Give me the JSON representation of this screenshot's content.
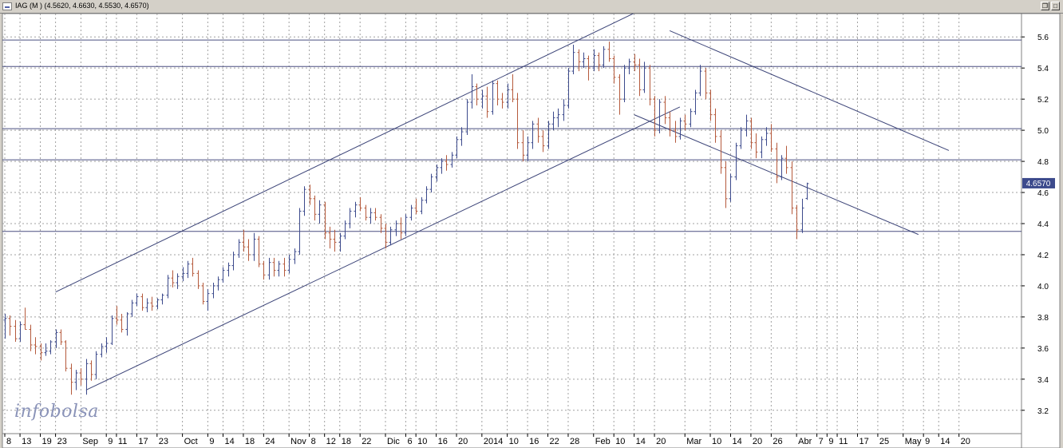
{
  "window": {
    "title": "IAG (M ) (4.5620, 4.6630, 4.5530, 4.6570)",
    "restore_glyph": "❐",
    "maximize_glyph": "□"
  },
  "chart_data": {
    "type": "bar",
    "subtype": "ohlc",
    "title": "IAG (M ) (4.5620, 4.6630, 4.5530, 4.6570)",
    "xlabel": "",
    "ylabel": "",
    "ylim": [
      3.05,
      5.75
    ],
    "y_ticks": [
      "3.2",
      "3.4",
      "3.6",
      "3.8",
      "4.0",
      "4.2",
      "4.4",
      "4.6",
      "4.8",
      "5.0",
      "5.2",
      "5.4",
      "5.6"
    ],
    "last_price_label": "4.6570",
    "last_price": 4.657,
    "x_tick_labels": [
      {
        "label": "8",
        "index": 0
      },
      {
        "label": "13",
        "index": 3
      },
      {
        "label": "19",
        "index": 7
      },
      {
        "label": "23",
        "index": 10
      },
      {
        "label": "Sep",
        "index": 15
      },
      {
        "label": "9",
        "index": 20
      },
      {
        "label": "11",
        "index": 22
      },
      {
        "label": "17",
        "index": 26
      },
      {
        "label": "23",
        "index": 30
      },
      {
        "label": "Oct",
        "index": 35
      },
      {
        "label": "9",
        "index": 40
      },
      {
        "label": "14",
        "index": 43
      },
      {
        "label": "18",
        "index": 47
      },
      {
        "label": "24",
        "index": 51
      },
      {
        "label": "Nov",
        "index": 56
      },
      {
        "label": "8",
        "index": 60
      },
      {
        "label": "12",
        "index": 63
      },
      {
        "label": "18",
        "index": 66
      },
      {
        "label": "22",
        "index": 70
      },
      {
        "label": "Dic",
        "index": 75
      },
      {
        "label": "6",
        "index": 79
      },
      {
        "label": "10",
        "index": 81
      },
      {
        "label": "16",
        "index": 85
      },
      {
        "label": "20",
        "index": 89
      },
      {
        "label": "2014",
        "index": 94
      },
      {
        "label": "10",
        "index": 99
      },
      {
        "label": "16",
        "index": 103
      },
      {
        "label": "22",
        "index": 107
      },
      {
        "label": "28",
        "index": 111
      },
      {
        "label": "Feb",
        "index": 116
      },
      {
        "label": "10",
        "index": 120
      },
      {
        "label": "14",
        "index": 124
      },
      {
        "label": "20",
        "index": 128
      },
      {
        "label": "Mar",
        "index": 134
      },
      {
        "label": "10",
        "index": 139
      },
      {
        "label": "14",
        "index": 143
      },
      {
        "label": "20",
        "index": 147
      },
      {
        "label": "26",
        "index": 151
      },
      {
        "label": "Abr",
        "index": 156
      },
      {
        "label": "7",
        "index": 160
      },
      {
        "label": "9",
        "index": 162
      },
      {
        "label": "11",
        "index": 164
      },
      {
        "label": "17",
        "index": 168
      },
      {
        "label": "25",
        "index": 172
      },
      {
        "label": "May",
        "index": 177
      },
      {
        "label": "9",
        "index": 181
      },
      {
        "label": "14",
        "index": 184
      },
      {
        "label": "20",
        "index": 188
      }
    ],
    "horizontal_levels": [
      5.58,
      5.41,
      5.01,
      4.81,
      4.35
    ],
    "trendlines": [
      {
        "from": {
          "index": 10,
          "value": 3.96
        },
        "to": {
          "index": 127,
          "value": 5.8
        }
      },
      {
        "from": {
          "index": 16,
          "value": 3.33
        },
        "to": {
          "index": 133,
          "value": 5.15
        }
      },
      {
        "from": {
          "index": 131,
          "value": 5.64
        },
        "to": {
          "index": 186,
          "value": 4.87
        }
      },
      {
        "from": {
          "index": 124,
          "value": 5.1
        },
        "to": {
          "index": 180,
          "value": 4.33
        }
      }
    ],
    "series": [
      {
        "name": "IAG",
        "up_color": "#3c4a8c",
        "down_color": "#b55a3c",
        "bars": [
          [
            3.78,
            3.82,
            3.66,
            3.79
          ],
          [
            3.79,
            3.81,
            3.68,
            3.74
          ],
          [
            3.74,
            3.78,
            3.64,
            3.66
          ],
          [
            3.66,
            3.77,
            3.64,
            3.75
          ],
          [
            3.75,
            3.86,
            3.72,
            3.72
          ],
          [
            3.72,
            3.75,
            3.58,
            3.62
          ],
          [
            3.62,
            3.67,
            3.56,
            3.61
          ],
          [
            3.61,
            3.63,
            3.52,
            3.57
          ],
          [
            3.57,
            3.63,
            3.55,
            3.58
          ],
          [
            3.58,
            3.65,
            3.56,
            3.64
          ],
          [
            3.64,
            3.72,
            3.6,
            3.7
          ],
          [
            3.7,
            3.72,
            3.62,
            3.64
          ],
          [
            3.64,
            3.65,
            3.45,
            3.47
          ],
          [
            3.47,
            3.5,
            3.3,
            3.38
          ],
          [
            3.38,
            3.46,
            3.33,
            3.44
          ],
          [
            3.44,
            3.47,
            3.36,
            3.4
          ],
          [
            3.4,
            3.53,
            3.3,
            3.5
          ],
          [
            3.5,
            3.52,
            3.39,
            3.43
          ],
          [
            3.43,
            3.58,
            3.4,
            3.56
          ],
          [
            3.56,
            3.63,
            3.54,
            3.61
          ],
          [
            3.61,
            3.67,
            3.57,
            3.63
          ],
          [
            3.63,
            3.81,
            3.62,
            3.79
          ],
          [
            3.79,
            3.87,
            3.75,
            3.78
          ],
          [
            3.78,
            3.82,
            3.7,
            3.72
          ],
          [
            3.72,
            3.83,
            3.68,
            3.82
          ],
          [
            3.82,
            3.91,
            3.8,
            3.89
          ],
          [
            3.89,
            3.95,
            3.87,
            3.93
          ],
          [
            3.93,
            3.95,
            3.84,
            3.86
          ],
          [
            3.86,
            3.92,
            3.83,
            3.89
          ],
          [
            3.89,
            3.93,
            3.84,
            3.87
          ],
          [
            3.87,
            3.92,
            3.85,
            3.91
          ],
          [
            3.91,
            3.95,
            3.88,
            3.94
          ],
          [
            3.94,
            4.07,
            3.92,
            4.05
          ],
          [
            4.05,
            4.1,
            3.99,
            4.02
          ],
          [
            4.02,
            4.08,
            3.98,
            4.06
          ],
          [
            4.06,
            4.12,
            4.03,
            4.08
          ],
          [
            4.08,
            4.16,
            4.05,
            4.14
          ],
          [
            4.14,
            4.18,
            4.06,
            4.08
          ],
          [
            4.08,
            4.1,
            3.98,
            4.0
          ],
          [
            4.0,
            4.02,
            3.88,
            3.9
          ],
          [
            3.9,
            3.98,
            3.84,
            3.95
          ],
          [
            3.95,
            4.02,
            3.92,
            4.0
          ],
          [
            4.0,
            4.06,
            3.97,
            4.04
          ],
          [
            4.04,
            4.12,
            4.02,
            4.1
          ],
          [
            4.1,
            4.15,
            4.06,
            4.13
          ],
          [
            4.13,
            4.22,
            4.1,
            4.2
          ],
          [
            4.2,
            4.3,
            4.18,
            4.28
          ],
          [
            4.28,
            4.36,
            4.22,
            4.25
          ],
          [
            4.25,
            4.3,
            4.16,
            4.2
          ],
          [
            4.2,
            4.34,
            4.16,
            4.3
          ],
          [
            4.3,
            4.32,
            4.12,
            4.14
          ],
          [
            4.14,
            4.16,
            4.04,
            4.07
          ],
          [
            4.07,
            4.18,
            4.04,
            4.15
          ],
          [
            4.15,
            4.18,
            4.06,
            4.1
          ],
          [
            4.1,
            4.16,
            4.06,
            4.14
          ],
          [
            4.14,
            4.18,
            4.06,
            4.1
          ],
          [
            4.1,
            4.2,
            4.08,
            4.17
          ],
          [
            4.17,
            4.24,
            4.14,
            4.22
          ],
          [
            4.22,
            4.5,
            4.2,
            4.48
          ],
          [
            4.48,
            4.64,
            4.45,
            4.62
          ],
          [
            4.62,
            4.65,
            4.52,
            4.56
          ],
          [
            4.56,
            4.58,
            4.42,
            4.46
          ],
          [
            4.46,
            4.55,
            4.4,
            4.52
          ],
          [
            4.52,
            4.54,
            4.3,
            4.34
          ],
          [
            4.34,
            4.38,
            4.24,
            4.3
          ],
          [
            4.3,
            4.36,
            4.22,
            4.28
          ],
          [
            4.28,
            4.34,
            4.22,
            4.32
          ],
          [
            4.32,
            4.42,
            4.3,
            4.4
          ],
          [
            4.4,
            4.5,
            4.37,
            4.48
          ],
          [
            4.48,
            4.54,
            4.44,
            4.52
          ],
          [
            4.52,
            4.57,
            4.48,
            4.5
          ],
          [
            4.5,
            4.52,
            4.42,
            4.44
          ],
          [
            4.44,
            4.5,
            4.4,
            4.47
          ],
          [
            4.47,
            4.5,
            4.42,
            4.44
          ],
          [
            4.44,
            4.46,
            4.34,
            4.37
          ],
          [
            4.37,
            4.4,
            4.24,
            4.28
          ],
          [
            4.28,
            4.38,
            4.26,
            4.36
          ],
          [
            4.36,
            4.42,
            4.32,
            4.4
          ],
          [
            4.4,
            4.44,
            4.3,
            4.34
          ],
          [
            4.34,
            4.46,
            4.32,
            4.44
          ],
          [
            4.44,
            4.52,
            4.42,
            4.5
          ],
          [
            4.5,
            4.56,
            4.46,
            4.48
          ],
          [
            4.48,
            4.57,
            4.46,
            4.55
          ],
          [
            4.55,
            4.64,
            4.53,
            4.62
          ],
          [
            4.62,
            4.72,
            4.6,
            4.7
          ],
          [
            4.7,
            4.78,
            4.67,
            4.76
          ],
          [
            4.76,
            4.82,
            4.72,
            4.8
          ],
          [
            4.8,
            4.84,
            4.74,
            4.78
          ],
          [
            4.78,
            4.86,
            4.76,
            4.84
          ],
          [
            4.84,
            4.96,
            4.82,
            4.94
          ],
          [
            4.94,
            5.02,
            4.9,
            4.99
          ],
          [
            4.99,
            5.2,
            4.97,
            5.18
          ],
          [
            5.18,
            5.36,
            5.14,
            5.28
          ],
          [
            5.28,
            5.3,
            5.16,
            5.2
          ],
          [
            5.2,
            5.26,
            5.14,
            5.22
          ],
          [
            5.22,
            5.28,
            5.08,
            5.12
          ],
          [
            5.12,
            5.32,
            5.1,
            5.3
          ],
          [
            5.3,
            5.32,
            5.16,
            5.2
          ],
          [
            5.2,
            5.24,
            5.14,
            5.18
          ],
          [
            5.18,
            5.3,
            5.14,
            5.26
          ],
          [
            5.26,
            5.36,
            5.18,
            5.2
          ],
          [
            5.2,
            5.24,
            4.88,
            4.92
          ],
          [
            4.92,
            5.0,
            4.8,
            4.84
          ],
          [
            4.84,
            4.96,
            4.8,
            4.92
          ],
          [
            4.92,
            5.06,
            4.88,
            5.04
          ],
          [
            5.04,
            5.08,
            4.92,
            4.96
          ],
          [
            4.96,
            5.0,
            4.86,
            4.9
          ],
          [
            4.9,
            5.06,
            4.88,
            5.04
          ],
          [
            5.04,
            5.12,
            5.0,
            5.08
          ],
          [
            5.08,
            5.14,
            5.02,
            5.1
          ],
          [
            5.1,
            5.2,
            5.06,
            5.16
          ],
          [
            5.16,
            5.4,
            5.14,
            5.38
          ],
          [
            5.38,
            5.55,
            5.36,
            5.5
          ],
          [
            5.5,
            5.52,
            5.38,
            5.44
          ],
          [
            5.44,
            5.5,
            5.4,
            5.46
          ],
          [
            5.46,
            5.48,
            5.32,
            5.4
          ],
          [
            5.4,
            5.52,
            5.38,
            5.48
          ],
          [
            5.48,
            5.5,
            5.38,
            5.42
          ],
          [
            5.42,
            5.54,
            5.4,
            5.52
          ],
          [
            5.52,
            5.57,
            5.44,
            5.46
          ],
          [
            5.46,
            5.48,
            5.3,
            5.34
          ],
          [
            5.34,
            5.36,
            5.1,
            5.2
          ],
          [
            5.2,
            5.42,
            5.18,
            5.4
          ],
          [
            5.4,
            5.46,
            5.36,
            5.44
          ],
          [
            5.44,
            5.49,
            5.38,
            5.42
          ],
          [
            5.42,
            5.46,
            5.22,
            5.26
          ],
          [
            5.26,
            5.44,
            5.24,
            5.4
          ],
          [
            5.4,
            5.42,
            5.16,
            5.2
          ],
          [
            5.2,
            5.22,
            4.96,
            5.0
          ],
          [
            5.0,
            5.2,
            4.98,
            5.18
          ],
          [
            5.18,
            5.22,
            5.04,
            5.08
          ],
          [
            5.08,
            5.12,
            4.96,
            5.0
          ],
          [
            5.0,
            5.06,
            4.92,
            4.96
          ],
          [
            4.96,
            5.08,
            4.94,
            5.06
          ],
          [
            5.06,
            5.1,
            5.0,
            5.04
          ],
          [
            5.04,
            5.14,
            5.02,
            5.12
          ],
          [
            5.12,
            5.26,
            5.1,
            5.24
          ],
          [
            5.24,
            5.42,
            5.22,
            5.38
          ],
          [
            5.38,
            5.4,
            5.2,
            5.24
          ],
          [
            5.24,
            5.26,
            5.06,
            5.1
          ],
          [
            5.1,
            5.14,
            4.92,
            4.96
          ],
          [
            4.96,
            5.0,
            4.72,
            4.76
          ],
          [
            4.76,
            4.8,
            4.5,
            4.56
          ],
          [
            4.56,
            4.72,
            4.54,
            4.7
          ],
          [
            4.7,
            4.92,
            4.68,
            4.9
          ],
          [
            4.9,
            5.02,
            4.88,
            5.0
          ],
          [
            5.0,
            5.1,
            4.96,
            5.06
          ],
          [
            5.06,
            5.08,
            4.88,
            4.92
          ],
          [
            4.92,
            4.98,
            4.82,
            4.86
          ],
          [
            4.86,
            4.96,
            4.82,
            4.94
          ],
          [
            4.94,
            5.02,
            4.9,
            4.98
          ],
          [
            4.98,
            5.04,
            4.86,
            4.88
          ],
          [
            4.88,
            4.92,
            4.66,
            4.7
          ],
          [
            4.7,
            4.84,
            4.68,
            4.82
          ],
          [
            4.82,
            4.9,
            4.72,
            4.76
          ],
          [
            4.76,
            4.8,
            4.46,
            4.5
          ],
          [
            4.5,
            4.52,
            4.3,
            4.36
          ],
          [
            4.36,
            4.56,
            4.34,
            4.5
          ],
          [
            4.562,
            4.663,
            4.553,
            4.657
          ]
        ]
      }
    ]
  }
}
